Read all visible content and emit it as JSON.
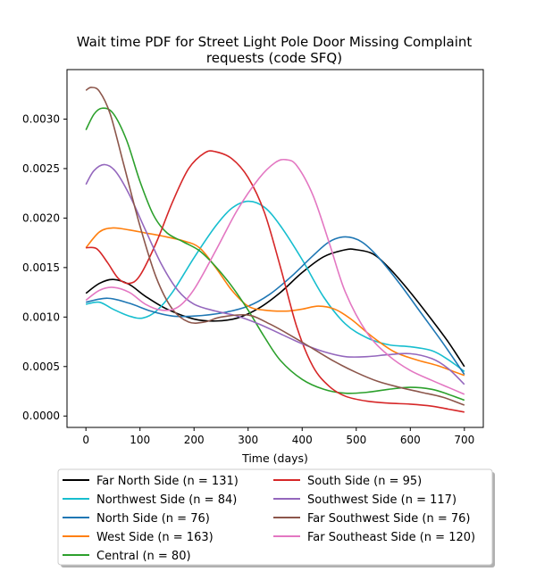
{
  "chart_data": {
    "type": "line",
    "title": "Wait time PDF for Street Light Pole Door Missing Complaint",
    "subtitle": "requests (code SFQ)",
    "xlabel": "Time (days)",
    "ylabel": "",
    "xlim": [
      -35,
      735
    ],
    "ylim": [
      -0.000115,
      0.0035
    ],
    "xticks": [
      0,
      100,
      200,
      300,
      400,
      500,
      600,
      700
    ],
    "xtick_labels": [
      "0",
      "100",
      "200",
      "300",
      "400",
      "500",
      "600",
      "700"
    ],
    "yticks": [
      0,
      0.0005,
      0.001,
      0.0015,
      0.002,
      0.0025,
      0.003
    ],
    "ytick_labels": [
      "0.0000",
      "0.0005",
      "0.0010",
      "0.0015",
      "0.0020",
      "0.0025",
      "0.0030"
    ],
    "grid": false,
    "legend_placement": "below, two columns",
    "series": [
      {
        "name": "Far North Side (n = 131)",
        "color": "#000000",
        "points": [
          [
            0,
            0.00124
          ],
          [
            25,
            0.00134
          ],
          [
            50,
            0.00138
          ],
          [
            80,
            0.00133
          ],
          [
            110,
            0.00121
          ],
          [
            150,
            0.00108
          ],
          [
            200,
            0.00098
          ],
          [
            240,
            0.00096
          ],
          [
            280,
            0.00099
          ],
          [
            320,
            0.00109
          ],
          [
            360,
            0.00125
          ],
          [
            400,
            0.00145
          ],
          [
            440,
            0.00161
          ],
          [
            480,
            0.00168
          ],
          [
            500,
            0.00168
          ],
          [
            530,
            0.00164
          ],
          [
            560,
            0.0015
          ],
          [
            600,
            0.00125
          ],
          [
            640,
            0.00097
          ],
          [
            670,
            0.00075
          ],
          [
            700,
            0.0005
          ]
        ]
      },
      {
        "name": "Northwest Side (n = 84)",
        "color": "#17becf",
        "points": [
          [
            0,
            0.00113
          ],
          [
            25,
            0.00115
          ],
          [
            50,
            0.00108
          ],
          [
            80,
            0.00101
          ],
          [
            105,
            0.00099
          ],
          [
            130,
            0.00106
          ],
          [
            160,
            0.00125
          ],
          [
            200,
            0.0016
          ],
          [
            240,
            0.00192
          ],
          [
            270,
            0.0021
          ],
          [
            300,
            0.00217
          ],
          [
            330,
            0.00211
          ],
          [
            360,
            0.00192
          ],
          [
            400,
            0.00158
          ],
          [
            440,
            0.0012
          ],
          [
            480,
            0.00093
          ],
          [
            520,
            0.00079
          ],
          [
            560,
            0.00072
          ],
          [
            600,
            0.0007
          ],
          [
            640,
            0.00066
          ],
          [
            670,
            0.00057
          ],
          [
            700,
            0.00045
          ]
        ]
      },
      {
        "name": "North Side (n = 76)",
        "color": "#1f77b4",
        "points": [
          [
            0,
            0.00115
          ],
          [
            40,
            0.00119
          ],
          [
            80,
            0.00114
          ],
          [
            120,
            0.00106
          ],
          [
            160,
            0.00101
          ],
          [
            200,
            0.00101
          ],
          [
            250,
            0.00104
          ],
          [
            300,
            0.00111
          ],
          [
            340,
            0.00123
          ],
          [
            380,
            0.00141
          ],
          [
            420,
            0.00162
          ],
          [
            450,
            0.00176
          ],
          [
            480,
            0.00181
          ],
          [
            510,
            0.00176
          ],
          [
            540,
            0.00161
          ],
          [
            580,
            0.00134
          ],
          [
            620,
            0.00104
          ],
          [
            660,
            0.00074
          ],
          [
            700,
            0.00042
          ]
        ]
      },
      {
        "name": "West Side (n = 163)",
        "color": "#ff7f0e",
        "points": [
          [
            0,
            0.0017
          ],
          [
            25,
            0.00186
          ],
          [
            50,
            0.0019
          ],
          [
            80,
            0.00188
          ],
          [
            110,
            0.00185
          ],
          [
            140,
            0.00182
          ],
          [
            180,
            0.00177
          ],
          [
            210,
            0.0017
          ],
          [
            240,
            0.0015
          ],
          [
            270,
            0.00127
          ],
          [
            300,
            0.00111
          ],
          [
            330,
            0.00107
          ],
          [
            370,
            0.00106
          ],
          [
            400,
            0.00108
          ],
          [
            430,
            0.00111
          ],
          [
            460,
            0.00108
          ],
          [
            490,
            0.00098
          ],
          [
            530,
            0.0008
          ],
          [
            570,
            0.00065
          ],
          [
            610,
            0.00057
          ],
          [
            650,
            0.00051
          ],
          [
            680,
            0.00045
          ],
          [
            700,
            0.00041
          ]
        ]
      },
      {
        "name": "Central (n = 80)",
        "color": "#2ca02c",
        "points": [
          [
            0,
            0.00289
          ],
          [
            15,
            0.00305
          ],
          [
            30,
            0.00311
          ],
          [
            50,
            0.00306
          ],
          [
            75,
            0.00279
          ],
          [
            100,
            0.00237
          ],
          [
            125,
            0.00203
          ],
          [
            150,
            0.00185
          ],
          [
            180,
            0.00176
          ],
          [
            210,
            0.00167
          ],
          [
            240,
            0.00151
          ],
          [
            270,
            0.00131
          ],
          [
            300,
            0.00107
          ],
          [
            330,
            0.0008
          ],
          [
            360,
            0.00056
          ],
          [
            400,
            0.00037
          ],
          [
            440,
            0.00027
          ],
          [
            480,
            0.00023
          ],
          [
            520,
            0.00024
          ],
          [
            560,
            0.00027
          ],
          [
            600,
            0.00029
          ],
          [
            640,
            0.00027
          ],
          [
            670,
            0.00022
          ],
          [
            700,
            0.00016
          ]
        ]
      },
      {
        "name": "South Side (n = 95)",
        "color": "#d62728",
        "points": [
          [
            0,
            0.0017
          ],
          [
            20,
            0.00169
          ],
          [
            40,
            0.00155
          ],
          [
            60,
            0.00139
          ],
          [
            80,
            0.00134
          ],
          [
            100,
            0.00142
          ],
          [
            130,
            0.00175
          ],
          [
            160,
            0.00216
          ],
          [
            190,
            0.0025
          ],
          [
            220,
            0.00266
          ],
          [
            240,
            0.00267
          ],
          [
            270,
            0.0026
          ],
          [
            300,
            0.00241
          ],
          [
            330,
            0.00206
          ],
          [
            360,
            0.0015
          ],
          [
            390,
            0.0009
          ],
          [
            420,
            0.0005
          ],
          [
            450,
            0.0003
          ],
          [
            480,
            0.0002
          ],
          [
            520,
            0.00015
          ],
          [
            560,
            0.00013
          ],
          [
            600,
            0.00012
          ],
          [
            640,
            0.0001
          ],
          [
            670,
            7e-05
          ],
          [
            700,
            4e-05
          ]
        ]
      },
      {
        "name": "Southwest Side (n = 117)",
        "color": "#9467bd",
        "points": [
          [
            0,
            0.00234
          ],
          [
            15,
            0.00248
          ],
          [
            35,
            0.00254
          ],
          [
            55,
            0.00247
          ],
          [
            80,
            0.00224
          ],
          [
            110,
            0.00188
          ],
          [
            140,
            0.00153
          ],
          [
            170,
            0.00127
          ],
          [
            200,
            0.00113
          ],
          [
            240,
            0.00106
          ],
          [
            280,
            0.00101
          ],
          [
            320,
            0.00093
          ],
          [
            360,
            0.00083
          ],
          [
            400,
            0.00073
          ],
          [
            440,
            0.00065
          ],
          [
            480,
            0.0006
          ],
          [
            520,
            0.0006
          ],
          [
            560,
            0.00062
          ],
          [
            600,
            0.00063
          ],
          [
            640,
            0.00058
          ],
          [
            670,
            0.00048
          ],
          [
            700,
            0.00032
          ]
        ]
      },
      {
        "name": "Far Southwest Side (n = 76)",
        "color": "#8c564b",
        "points": [
          [
            0,
            0.00329
          ],
          [
            10,
            0.00332
          ],
          [
            25,
            0.00328
          ],
          [
            45,
            0.00305
          ],
          [
            70,
            0.00254
          ],
          [
            100,
            0.00192
          ],
          [
            130,
            0.0014
          ],
          [
            160,
            0.00108
          ],
          [
            190,
            0.00095
          ],
          [
            220,
            0.00095
          ],
          [
            250,
            0.001
          ],
          [
            300,
            0.00102
          ],
          [
            340,
            0.00093
          ],
          [
            380,
            0.00081
          ],
          [
            420,
            0.00068
          ],
          [
            460,
            0.00055
          ],
          [
            500,
            0.00044
          ],
          [
            540,
            0.00035
          ],
          [
            580,
            0.00029
          ],
          [
            620,
            0.00024
          ],
          [
            660,
            0.00019
          ],
          [
            700,
            0.00011
          ]
        ]
      },
      {
        "name": "Far Southeast Side (n = 120)",
        "color": "#e377c2",
        "points": [
          [
            0,
            0.00117
          ],
          [
            25,
            0.00127
          ],
          [
            50,
            0.0013
          ],
          [
            80,
            0.00125
          ],
          [
            110,
            0.00113
          ],
          [
            140,
            0.00107
          ],
          [
            170,
            0.0011
          ],
          [
            200,
            0.00128
          ],
          [
            240,
            0.00167
          ],
          [
            280,
            0.00208
          ],
          [
            320,
            0.0024
          ],
          [
            350,
            0.00256
          ],
          [
            370,
            0.00259
          ],
          [
            390,
            0.00253
          ],
          [
            420,
            0.00223
          ],
          [
            450,
            0.00175
          ],
          [
            480,
            0.00125
          ],
          [
            520,
            0.00084
          ],
          [
            560,
            0.00061
          ],
          [
            600,
            0.00046
          ],
          [
            640,
            0.00036
          ],
          [
            670,
            0.00029
          ],
          [
            700,
            0.00022
          ]
        ]
      }
    ]
  }
}
